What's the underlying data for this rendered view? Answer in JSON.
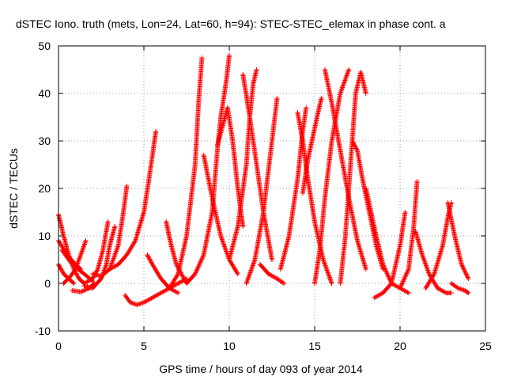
{
  "chart_data": {
    "type": "scatter",
    "title": "dSTEC Iono. truth (mets, Lon=24, Lat=60, h=94): STEC-STEC_elemax in phase cont. a",
    "xlabel": "GPS time / hours of day 093 of year 2014",
    "ylabel": "dSTEC  / TECUs",
    "xlim": [
      0,
      25
    ],
    "ylim": [
      -10,
      50
    ],
    "xticks": [
      0,
      5,
      10,
      15,
      20,
      25
    ],
    "yticks": [
      -10,
      0,
      10,
      20,
      30,
      40,
      50
    ],
    "grid": true,
    "marker": "+",
    "color": "#ff0000",
    "series": [
      {
        "x": [
          0.0,
          0.3,
          0.6,
          0.9,
          1.2,
          1.5
        ],
        "y": [
          14.5,
          10,
          6,
          3,
          1,
          0
        ]
      },
      {
        "x": [
          0.0,
          0.3,
          0.6,
          0.9
        ],
        "y": [
          4,
          2,
          1,
          0
        ]
      },
      {
        "x": [
          0.0,
          0.5,
          1.0,
          1.3
        ],
        "y": [
          9,
          6,
          4,
          3
        ]
      },
      {
        "x": [
          0.3,
          0.7,
          1.0,
          1.2,
          1.4,
          1.6
        ],
        "y": [
          0,
          1.5,
          3,
          5,
          7,
          9
        ]
      },
      {
        "x": [
          0.2,
          0.8,
          1.5,
          2.0
        ],
        "y": [
          7,
          4,
          2,
          0.5
        ]
      },
      {
        "x": [
          1.5,
          2.0,
          2.5,
          2.8,
          3.0,
          3.3
        ],
        "y": [
          -0.5,
          -1,
          1,
          4,
          8,
          12
        ]
      },
      {
        "x": [
          1.5,
          2.0,
          2.3,
          2.6,
          2.9
        ],
        "y": [
          0,
          1,
          3,
          7,
          13
        ]
      },
      {
        "x": [
          0.8,
          1.3,
          1.8,
          2.1
        ],
        "y": [
          -1.5,
          -1.8,
          -1,
          0
        ]
      },
      {
        "x": [
          2.0,
          2.5,
          3.0,
          3.5,
          3.8,
          4.0
        ],
        "y": [
          2,
          1.5,
          3,
          8,
          15,
          20.5
        ]
      },
      {
        "x": [
          3.9,
          4.2,
          4.6,
          5.0,
          5.5,
          6.0,
          6.5,
          7.0,
          7.5
        ],
        "y": [
          -2.5,
          -4,
          -4.5,
          -4,
          -3,
          -2,
          -1,
          0,
          1
        ]
      },
      {
        "x": [
          3.0,
          3.5,
          4.0,
          4.5,
          5.0,
          5.3,
          5.5,
          5.7
        ],
        "y": [
          3,
          4,
          6,
          9,
          15,
          22,
          27,
          32
        ]
      },
      {
        "x": [
          5.2,
          5.5,
          6.0,
          6.5,
          7.0
        ],
        "y": [
          6,
          4,
          1,
          -1,
          -2
        ]
      },
      {
        "x": [
          6.5,
          7.0,
          7.5,
          8.0,
          8.2,
          8.4
        ],
        "y": [
          -1,
          2,
          10,
          25,
          38,
          47.5
        ]
      },
      {
        "x": [
          6.3,
          6.6,
          6.9,
          7.2,
          7.5
        ],
        "y": [
          13,
          8,
          4,
          2,
          0
        ]
      },
      {
        "x": [
          7.5,
          8.0,
          8.5,
          9.0,
          9.3,
          9.5,
          9.8,
          10.0
        ],
        "y": [
          0,
          2,
          6,
          15,
          28,
          35,
          42,
          48
        ]
      },
      {
        "x": [
          8.5,
          9.0,
          9.5,
          10.0,
          10.5
        ],
        "y": [
          27,
          18,
          10,
          5,
          2
        ]
      },
      {
        "x": [
          9.3,
          9.6,
          9.9,
          10.2,
          10.5,
          10.8
        ],
        "y": [
          29,
          33,
          37,
          30,
          20,
          12
        ]
      },
      {
        "x": [
          10.0,
          10.5,
          11.0,
          11.2,
          11.4,
          11.6
        ],
        "y": [
          5,
          12,
          25,
          35,
          42,
          45
        ]
      },
      {
        "x": [
          10.8,
          11.2,
          11.6,
          12.0,
          12.5
        ],
        "y": [
          44,
          35,
          25,
          15,
          5
        ]
      },
      {
        "x": [
          11.0,
          11.5,
          12.0,
          12.5,
          12.8
        ],
        "y": [
          0,
          5,
          15,
          30,
          39
        ]
      },
      {
        "x": [
          11.8,
          12.3,
          12.8,
          13.2
        ],
        "y": [
          4,
          2,
          1,
          0
        ]
      },
      {
        "x": [
          13.0,
          13.5,
          14.0,
          14.3,
          14.5
        ],
        "y": [
          3,
          10,
          22,
          32,
          37
        ]
      },
      {
        "x": [
          14.0,
          14.3,
          14.6,
          15.0,
          15.5,
          16.0
        ],
        "y": [
          36,
          30,
          22,
          13,
          5,
          0
        ]
      },
      {
        "x": [
          14.3,
          14.6,
          14.9,
          15.2,
          15.4
        ],
        "y": [
          19,
          26,
          31,
          36,
          39
        ]
      },
      {
        "x": [
          15.0,
          15.3,
          15.6,
          16.0,
          16.5,
          17.0
        ],
        "y": [
          0,
          7,
          18,
          30,
          40,
          45
        ]
      },
      {
        "x": [
          15.6,
          16.0,
          16.5,
          17.0,
          17.5,
          18.0
        ],
        "y": [
          45,
          38,
          28,
          18,
          9,
          3
        ]
      },
      {
        "x": [
          16.5,
          16.8,
          17.1,
          17.4,
          17.7,
          18.0
        ],
        "y": [
          0,
          10,
          25,
          40,
          44.5,
          40
        ]
      },
      {
        "x": [
          17.2,
          17.5,
          17.8,
          18.2,
          18.6,
          19.0
        ],
        "y": [
          30,
          28,
          22,
          15,
          8,
          3
        ]
      },
      {
        "x": [
          18.0,
          18.3,
          18.6,
          19.0,
          19.5,
          20.0,
          20.5
        ],
        "y": [
          20,
          15,
          10,
          4,
          0,
          -1,
          -2
        ]
      },
      {
        "x": [
          18.5,
          19.0,
          19.5,
          20.0,
          20.3
        ],
        "y": [
          -3,
          -2,
          0,
          8,
          15
        ]
      },
      {
        "x": [
          20.0,
          20.5,
          20.8,
          21.0
        ],
        "y": [
          -1,
          3,
          12,
          21.5
        ]
      },
      {
        "x": [
          20.9,
          21.3,
          21.7,
          22.2,
          22.7,
          23.0
        ],
        "y": [
          11,
          6,
          2,
          -1,
          -2,
          -2
        ]
      },
      {
        "x": [
          21.5,
          22.0,
          22.5,
          22.8,
          23.0
        ],
        "y": [
          -1,
          2,
          8,
          14,
          17
        ]
      },
      {
        "x": [
          22.8,
          23.2,
          23.6,
          24.0
        ],
        "y": [
          17,
          10,
          4,
          1
        ]
      },
      {
        "x": [
          23.0,
          23.4,
          23.8,
          24.0
        ],
        "y": [
          0,
          -1,
          -1.5,
          -2
        ]
      }
    ]
  }
}
